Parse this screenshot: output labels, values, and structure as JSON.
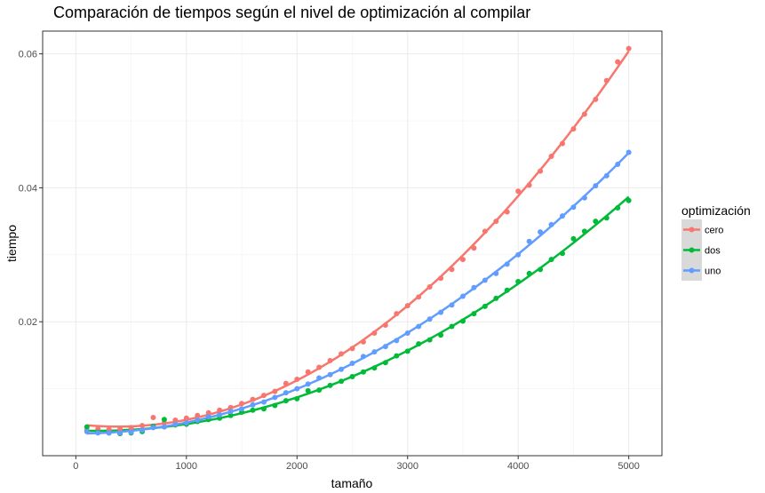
{
  "chart_data": {
    "type": "scatter",
    "title": "Comparación de tiempos según el nivel de optimización al compilar",
    "xlabel": "tamaño",
    "ylabel": "tiempo",
    "xlim": [
      -300,
      5300
    ],
    "ylim": [
      0.0,
      0.0634
    ],
    "x_ticks": [
      0,
      1000,
      2000,
      3000,
      4000,
      5000
    ],
    "x_tick_labels": [
      "0",
      "1000",
      "2000",
      "3000",
      "4000",
      "5000"
    ],
    "y_ticks": [
      0.02,
      0.04,
      0.06
    ],
    "y_tick_labels": [
      "0.02",
      "0.04",
      "0.06"
    ],
    "grid": true,
    "legend": {
      "title": "optimización",
      "position": "right"
    },
    "trend": "smoothed fit line per series",
    "series": [
      {
        "name": "cero",
        "color": "#F8766D",
        "x": [
          100,
          200,
          300,
          400,
          500,
          600,
          700,
          800,
          900,
          1000,
          1100,
          1200,
          1300,
          1400,
          1500,
          1600,
          1700,
          1800,
          1900,
          2000,
          2100,
          2200,
          2300,
          2400,
          2500,
          2600,
          2700,
          2800,
          2900,
          3000,
          3100,
          3200,
          3300,
          3400,
          3500,
          3600,
          3700,
          3800,
          3900,
          4000,
          4100,
          4200,
          4300,
          4400,
          4500,
          4600,
          4700,
          4800,
          4900,
          5000
        ],
        "y": [
          0.0038,
          0.004,
          0.0039,
          0.004,
          0.0042,
          0.0045,
          0.0057,
          0.0049,
          0.0053,
          0.0056,
          0.006,
          0.0064,
          0.0068,
          0.0072,
          0.0078,
          0.0084,
          0.009,
          0.0096,
          0.0108,
          0.0114,
          0.0125,
          0.0132,
          0.0142,
          0.0152,
          0.016,
          0.017,
          0.0183,
          0.0195,
          0.0212,
          0.0224,
          0.0237,
          0.0252,
          0.0265,
          0.0278,
          0.0293,
          0.031,
          0.0335,
          0.035,
          0.0364,
          0.0395,
          0.0404,
          0.0425,
          0.0447,
          0.0466,
          0.0488,
          0.051,
          0.0532,
          0.056,
          0.0588,
          0.0608
        ]
      },
      {
        "name": "dos",
        "color": "#00BA38",
        "x": [
          100,
          200,
          300,
          400,
          500,
          600,
          700,
          800,
          900,
          1000,
          1100,
          1200,
          1300,
          1400,
          1500,
          1600,
          1700,
          1800,
          1900,
          2000,
          2100,
          2200,
          2300,
          2400,
          2500,
          2600,
          2700,
          2800,
          2900,
          3000,
          3100,
          3200,
          3300,
          3400,
          3500,
          3600,
          3700,
          3800,
          3900,
          4000,
          4100,
          4200,
          4300,
          4400,
          4500,
          4600,
          4700,
          4800,
          4900,
          5000
        ],
        "y": [
          0.0043,
          0.0035,
          0.0034,
          0.0033,
          0.0034,
          0.0036,
          0.0044,
          0.0054,
          0.0046,
          0.0047,
          0.0051,
          0.0054,
          0.0056,
          0.006,
          0.0065,
          0.0068,
          0.007,
          0.0075,
          0.0082,
          0.0085,
          0.0097,
          0.0098,
          0.0105,
          0.0111,
          0.0118,
          0.0125,
          0.0131,
          0.0139,
          0.0149,
          0.0156,
          0.0167,
          0.0173,
          0.018,
          0.0193,
          0.0201,
          0.0212,
          0.0223,
          0.0235,
          0.0247,
          0.026,
          0.0272,
          0.0278,
          0.0293,
          0.0302,
          0.0324,
          0.0335,
          0.035,
          0.0355,
          0.037,
          0.0381
        ]
      },
      {
        "name": "uno",
        "color": "#619CFF",
        "x": [
          100,
          200,
          300,
          400,
          500,
          600,
          700,
          800,
          900,
          1000,
          1100,
          1200,
          1300,
          1400,
          1500,
          1600,
          1700,
          1800,
          1900,
          2000,
          2100,
          2200,
          2300,
          2400,
          2500,
          2600,
          2700,
          2800,
          2900,
          3000,
          3100,
          3200,
          3300,
          3400,
          3500,
          3600,
          3700,
          3800,
          3900,
          4000,
          4100,
          4200,
          4300,
          4400,
          4500,
          4600,
          4700,
          4800,
          4900,
          5000
        ],
        "y": [
          0.0036,
          0.0034,
          0.0034,
          0.0034,
          0.0035,
          0.0038,
          0.0042,
          0.0043,
          0.0047,
          0.0049,
          0.0053,
          0.0058,
          0.0061,
          0.0066,
          0.007,
          0.0076,
          0.008,
          0.0087,
          0.0094,
          0.01,
          0.0107,
          0.0116,
          0.0121,
          0.0129,
          0.0138,
          0.0148,
          0.0155,
          0.0163,
          0.0172,
          0.0183,
          0.0193,
          0.0204,
          0.0214,
          0.0225,
          0.0238,
          0.0251,
          0.0262,
          0.0272,
          0.0286,
          0.03,
          0.032,
          0.0334,
          0.0345,
          0.0358,
          0.0371,
          0.0385,
          0.0403,
          0.0418,
          0.0435,
          0.0453
        ]
      }
    ]
  }
}
